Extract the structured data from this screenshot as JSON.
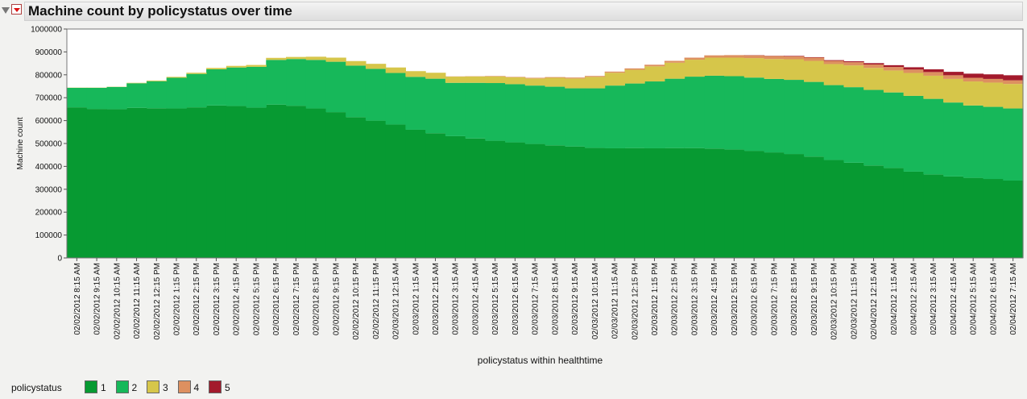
{
  "window": {
    "title": "Machine count by policystatus over time"
  },
  "legend": {
    "title": "policystatus",
    "items": [
      {
        "label": "1",
        "color": "#079a32"
      },
      {
        "label": "2",
        "color": "#17b85a"
      },
      {
        "label": "3",
        "color": "#d6c64a"
      },
      {
        "label": "4",
        "color": "#dd9060"
      },
      {
        "label": "5",
        "color": "#a31a2c"
      }
    ]
  },
  "chart_data": {
    "type": "area",
    "stacked": true,
    "step": true,
    "xlabel": "policystatus within healthtime",
    "ylabel": "Machine count",
    "ylim": [
      0,
      1000000
    ],
    "yticks": [
      0,
      100000,
      200000,
      300000,
      400000,
      500000,
      600000,
      700000,
      800000,
      900000,
      1000000
    ],
    "grid": false,
    "categories": [
      "02/02/2012 8:15 AM",
      "02/02/2012 9:15 AM",
      "02/02/2012 10:15 AM",
      "02/02/2012 11:15 AM",
      "02/02/2012 12:15 PM",
      "02/02/2012 1:15 PM",
      "02/02/2012 2:15 PM",
      "02/02/2012 3:15 PM",
      "02/02/2012 4:15 PM",
      "02/02/2012 5:15 PM",
      "02/02/2012 6:15 PM",
      "02/02/2012 7:15 PM",
      "02/02/2012 8:15 PM",
      "02/02/2012 9:15 PM",
      "02/02/2012 10:15 PM",
      "02/02/2012 11:15 PM",
      "02/03/2012 12:15 AM",
      "02/03/2012 1:15 AM",
      "02/03/2012 2:15 AM",
      "02/03/2012 3:15 AM",
      "02/03/2012 4:15 AM",
      "02/03/2012 5:15 AM",
      "02/03/2012 6:15 AM",
      "02/03/2012 7:15 AM",
      "02/03/2012 8:15 AM",
      "02/03/2012 9:15 AM",
      "02/03/2012 10:15 AM",
      "02/03/2012 11:15 AM",
      "02/03/2012 12:15 PM",
      "02/03/2012 1:15 PM",
      "02/03/2012 2:15 PM",
      "02/03/2012 3:15 PM",
      "02/03/2012 4:15 PM",
      "02/03/2012 5:15 PM",
      "02/03/2012 6:15 PM",
      "02/03/2012 7:15 PM",
      "02/03/2012 8:15 PM",
      "02/03/2012 9:15 PM",
      "02/03/2012 10:15 PM",
      "02/03/2012 11:15 PM",
      "02/04/2012 12:15 AM",
      "02/04/2012 1:15 AM",
      "02/04/2012 2:15 AM",
      "02/04/2012 3:15 AM",
      "02/04/2012 4:15 AM",
      "02/04/2012 5:15 AM",
      "02/04/2012 6:15 AM",
      "02/04/2012 7:15 AM"
    ],
    "series": [
      {
        "name": "1",
        "color": "#079a32",
        "values": [
          658000,
          651000,
          650000,
          656000,
          654000,
          653000,
          658000,
          666000,
          664000,
          657000,
          670000,
          665000,
          653000,
          637000,
          615000,
          600000,
          583000,
          560000,
          545000,
          532000,
          522000,
          512000,
          505000,
          498000,
          492000,
          487000,
          481000,
          479000,
          480000,
          479000,
          480000,
          480000,
          478000,
          474000,
          468000,
          461000,
          454000,
          443000,
          428000,
          416000,
          404000,
          393000,
          377000,
          365000,
          356000,
          350000,
          345000,
          338000
        ]
      },
      {
        "name": "2",
        "color": "#17b85a",
        "values": [
          85000,
          92000,
          97000,
          107000,
          118000,
          134000,
          146000,
          158000,
          168000,
          178000,
          195000,
          204000,
          212000,
          220000,
          225000,
          226000,
          225000,
          231000,
          238000,
          233000,
          243000,
          252000,
          254000,
          255000,
          256000,
          254000,
          260000,
          274000,
          282000,
          292000,
          303000,
          312000,
          318000,
          320000,
          320000,
          321000,
          324000,
          326000,
          327000,
          330000,
          330000,
          330000,
          331000,
          330000,
          323000,
          316000,
          315000,
          315000
        ]
      },
      {
        "name": "3",
        "color": "#d6c64a",
        "values": [
          1000,
          1000,
          1000,
          2000,
          3000,
          4000,
          5000,
          6000,
          7000,
          8000,
          9000,
          9000,
          14000,
          18000,
          20000,
          22000,
          24000,
          25000,
          26000,
          27000,
          28000,
          29000,
          30000,
          31000,
          39000,
          43000,
          50000,
          56000,
          60000,
          66000,
          70000,
          74000,
          79000,
          81000,
          85000,
          87000,
          90000,
          92000,
          92000,
          95000,
          96000,
          96000,
          100000,
          101000,
          103000,
          105000,
          106000,
          107000
        ]
      },
      {
        "name": "4",
        "color": "#dd9060",
        "values": [
          0,
          0,
          0,
          0,
          0,
          0,
          0,
          0,
          0,
          0,
          0,
          0,
          0,
          0,
          0,
          0,
          0,
          0,
          0,
          1000,
          1000,
          2000,
          2000,
          3000,
          3000,
          4000,
          4000,
          5000,
          6000,
          7000,
          8000,
          9000,
          10000,
          11000,
          12000,
          13000,
          13000,
          14000,
          14000,
          14000,
          15000,
          15000,
          15000,
          16000,
          16000,
          16000,
          16000,
          16000
        ]
      },
      {
        "name": "5",
        "color": "#a31a2c",
        "values": [
          0,
          0,
          0,
          0,
          0,
          0,
          0,
          0,
          0,
          0,
          0,
          0,
          0,
          0,
          0,
          0,
          0,
          0,
          0,
          0,
          0,
          0,
          0,
          0,
          0,
          0,
          0,
          0,
          0,
          0,
          0,
          0,
          0,
          0,
          1000,
          1000,
          2000,
          2000,
          3000,
          4000,
          6000,
          8000,
          10000,
          12000,
          15000,
          18000,
          20000,
          22000
        ]
      }
    ]
  }
}
